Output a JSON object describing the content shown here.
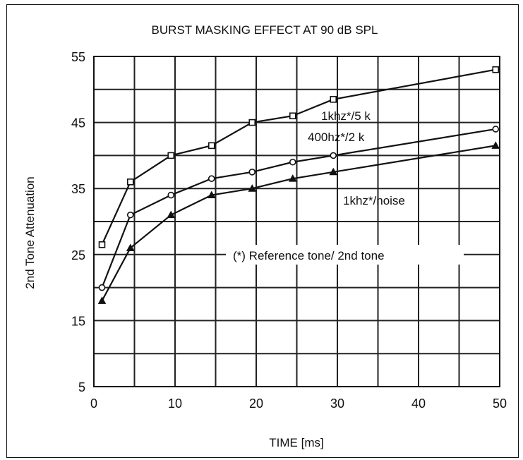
{
  "chart_data": {
    "type": "line",
    "title": "BURST MASKING EFFECT AT 90 dB SPL",
    "xlabel": "TIME [ms]",
    "ylabel": "2nd Tone Attenuation",
    "xlim": [
      0,
      50
    ],
    "ylim": [
      5,
      55
    ],
    "xticks": [
      "0",
      "10",
      "20",
      "30",
      "40",
      "50"
    ],
    "yticks": [
      "55",
      "45",
      "35",
      "25",
      "15",
      "5"
    ],
    "grid": true,
    "series": [
      {
        "name": "1khz*/5 k",
        "marker": "square",
        "x": [
          1,
          4.5,
          9.5,
          14.5,
          19.5,
          24.5,
          29.5,
          49.5
        ],
        "y": [
          26.5,
          36,
          40,
          41.5,
          45,
          46,
          48.5,
          53
        ]
      },
      {
        "name": "400hz*/2 k",
        "marker": "circle",
        "x": [
          1,
          4.5,
          9.5,
          14.5,
          19.5,
          24.5,
          29.5,
          49.5
        ],
        "y": [
          20,
          31,
          34,
          36.5,
          37.5,
          39,
          40,
          44
        ]
      },
      {
        "name": "1khz*/noise",
        "marker": "triangle",
        "x": [
          1,
          4.5,
          9.5,
          14.5,
          19.5,
          24.5,
          29.5,
          49.5
        ],
        "y": [
          18,
          26,
          31,
          34,
          35,
          36.5,
          37.5,
          41.5
        ]
      }
    ],
    "annotation": "(*) Reference tone/ 2nd tone"
  }
}
